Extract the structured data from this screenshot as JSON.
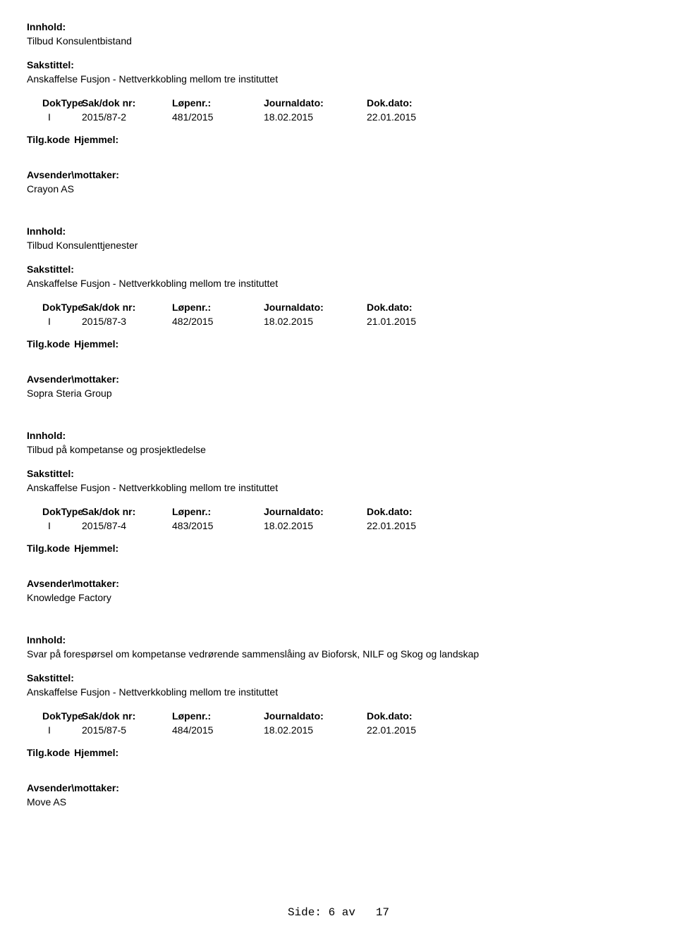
{
  "labels": {
    "innhold": "Innhold:",
    "sakstittel": "Sakstittel:",
    "doktype": "DokType",
    "saknr": "Sak/dok nr:",
    "lopenr": "Løpenr.:",
    "journaldato": "Journaldato:",
    "dokdato": "Dok.dato:",
    "tilgkode": "Tilg.kode",
    "hjemmel": "Hjemmel:",
    "avsender": "Avsender\\mottaker:"
  },
  "entries": [
    {
      "innhold": "Tilbud Konsulentbistand",
      "sakstittel": "Anskaffelse Fusjon - Nettverkkobling mellom tre instituttet",
      "doktype": "I",
      "saknr": "2015/87-2",
      "lopenr": "481/2015",
      "journaldato": "18.02.2015",
      "dokdato": "22.01.2015",
      "avsender": "Crayon AS"
    },
    {
      "innhold": "Tilbud Konsulenttjenester",
      "sakstittel": "Anskaffelse Fusjon - Nettverkkobling mellom tre instituttet",
      "doktype": "I",
      "saknr": "2015/87-3",
      "lopenr": "482/2015",
      "journaldato": "18.02.2015",
      "dokdato": "21.01.2015",
      "avsender": "Sopra Steria Group"
    },
    {
      "innhold": "Tilbud på kompetanse og prosjektledelse",
      "sakstittel": "Anskaffelse Fusjon - Nettverkkobling mellom tre instituttet",
      "doktype": "I",
      "saknr": "2015/87-4",
      "lopenr": "483/2015",
      "journaldato": "18.02.2015",
      "dokdato": "22.01.2015",
      "avsender": "Knowledge Factory"
    },
    {
      "innhold": "Svar på forespørsel om kompetanse vedrørende sammenslåing av Bioforsk, NILF og Skog og landskap",
      "sakstittel": "Anskaffelse Fusjon - Nettverkkobling mellom tre instituttet",
      "doktype": "I",
      "saknr": "2015/87-5",
      "lopenr": "484/2015",
      "journaldato": "18.02.2015",
      "dokdato": "22.01.2015",
      "avsender": "Move AS"
    }
  ],
  "footer": {
    "side": "Side:",
    "current": "6",
    "av": "av",
    "total": "17"
  }
}
